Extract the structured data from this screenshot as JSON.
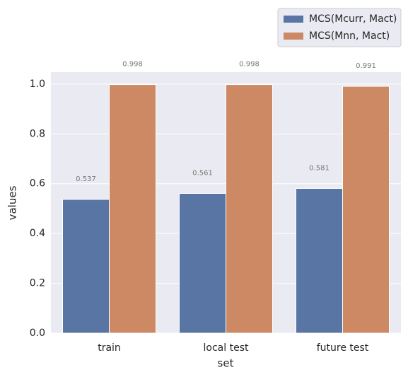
{
  "chart_data": {
    "type": "bar",
    "x_label": "set",
    "y_label": "values",
    "categories": [
      "train",
      "local test",
      "future test"
    ],
    "series": [
      {
        "name": "MCS(Mcurr, Mact)",
        "color": "#5875a4",
        "values": [
          0.537,
          0.561,
          0.581
        ]
      },
      {
        "name": "MCS(Mnn, Mact)",
        "color": "#cc8963",
        "values": [
          0.998,
          0.998,
          0.991
        ]
      }
    ],
    "ylim": [
      0,
      1.048
    ],
    "yticks": [
      {
        "value": 0,
        "label": "0.0"
      },
      0.2,
      0.4,
      0.6,
      0.8,
      {
        "value": 1,
        "label": "1.0"
      }
    ],
    "grid": true,
    "legend": "upper right"
  }
}
